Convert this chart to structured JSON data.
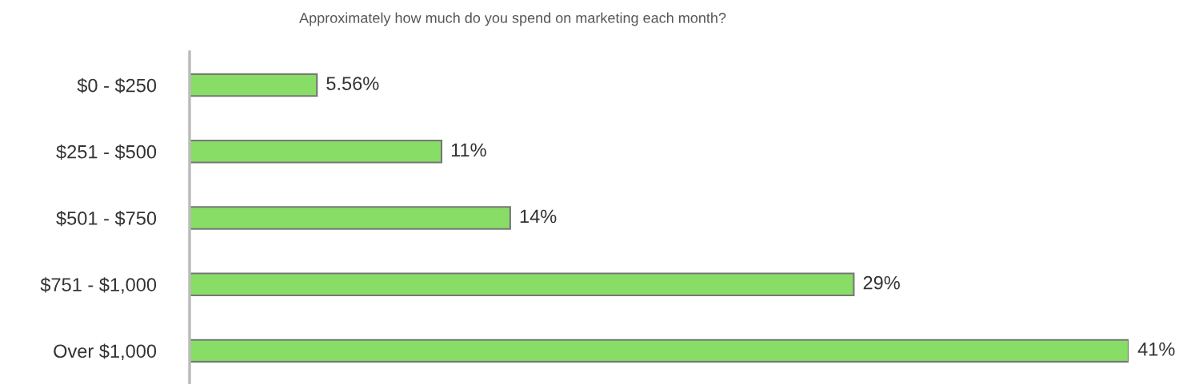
{
  "chart_data": {
    "type": "bar",
    "orientation": "horizontal",
    "title": "Approximately how much do you spend on marketing each month?",
    "categories": [
      "$0 - $250",
      "$251 - $500",
      "$501 - $750",
      "$751 - $1,000",
      "Over $1,000"
    ],
    "values": [
      5.56,
      11,
      14,
      29,
      41
    ],
    "value_labels": [
      "5.56%",
      "11%",
      "14%",
      "29%",
      "41%"
    ],
    "color": "#88dd66",
    "tick_labels": "y"
  }
}
